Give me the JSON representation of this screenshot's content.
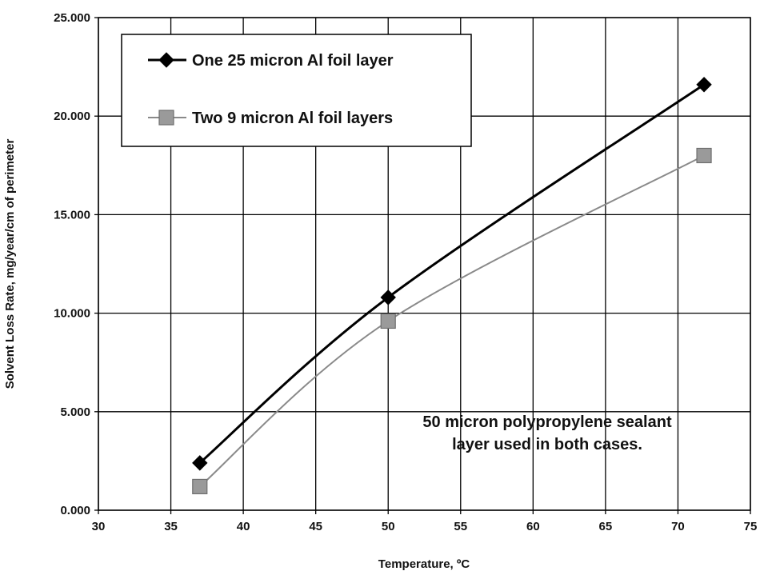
{
  "chart_data": {
    "type": "line",
    "title": "",
    "xlabel": "Temperature, ºC",
    "ylabel": "Solvent Loss Rate, mg/year/cm of perimeter",
    "xlim": [
      30,
      75
    ],
    "ylim": [
      0,
      25
    ],
    "x_ticks": [
      30,
      35,
      40,
      45,
      50,
      55,
      60,
      65,
      70,
      75
    ],
    "y_ticks": [
      0,
      5,
      10,
      15,
      20,
      25
    ],
    "x_tick_labels": [
      "30",
      "35",
      "40",
      "45",
      "50",
      "55",
      "60",
      "65",
      "70",
      "75"
    ],
    "y_tick_labels": [
      "0.000",
      "5.000",
      "10.000",
      "15.000",
      "20.000",
      "25.000"
    ],
    "grid": true,
    "legend_position": "top-left",
    "series": [
      {
        "name": "One 25 micron Al foil layer",
        "marker": "diamond",
        "color": "#000000",
        "x": [
          37,
          50,
          71.8
        ],
        "y": [
          2.4,
          10.8,
          21.6
        ]
      },
      {
        "name": "Two 9 micron Al foil layers",
        "marker": "square",
        "color": "#8a8a8a",
        "x": [
          37,
          50,
          71.8
        ],
        "y": [
          1.2,
          9.6,
          18.0
        ]
      }
    ],
    "annotation": {
      "lines": [
        "50 micron polypropylene sealant",
        "layer used in both cases."
      ]
    }
  }
}
